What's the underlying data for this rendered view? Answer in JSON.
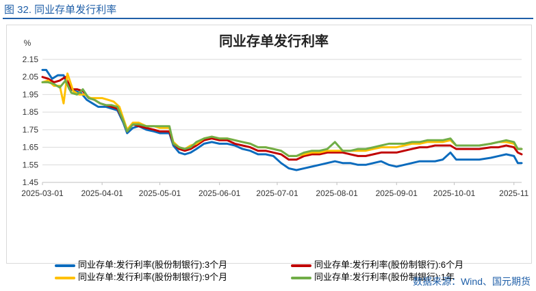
{
  "caption": "图 32. 同业存单发行利率",
  "source": "数据来源：Wind、国元期货",
  "chart_data": {
    "type": "line",
    "title": "同业存单发行利率",
    "ylabel": "%",
    "ylim": [
      1.45,
      2.15
    ],
    "yticks": [
      "2.15",
      "2.05",
      "1.95",
      "1.85",
      "1.75",
      "1.65",
      "1.55",
      "1.45"
    ],
    "xlim": [
      "2025-03-01",
      "2025-11-05"
    ],
    "xticks": [
      "2025-03-01",
      "2025-04-01",
      "2025-05-01",
      "2025-06-01",
      "2025-07-01",
      "2025-08-01",
      "2025-09-01",
      "2025-10-01",
      "2025-11"
    ],
    "grid": "horizontal",
    "legend_position": "bottom",
    "series": [
      {
        "name": "同业存单:发行利率(股份制银行):3个月",
        "color": "#0b6bbd",
        "points": [
          [
            "2025-03-01",
            2.09
          ],
          [
            "2025-03-03",
            2.09
          ],
          [
            "2025-03-06",
            2.04
          ],
          [
            "2025-03-09",
            2.06
          ],
          [
            "2025-03-12",
            2.06
          ],
          [
            "2025-03-15",
            1.98
          ],
          [
            "2025-03-18",
            1.97
          ],
          [
            "2025-03-21",
            1.96
          ],
          [
            "2025-03-24",
            1.92
          ],
          [
            "2025-03-27",
            1.9
          ],
          [
            "2025-03-30",
            1.88
          ],
          [
            "2025-04-03",
            1.88
          ],
          [
            "2025-04-06",
            1.87
          ],
          [
            "2025-04-09",
            1.86
          ],
          [
            "2025-04-12",
            1.79
          ],
          [
            "2025-04-14",
            1.73
          ],
          [
            "2025-04-17",
            1.76
          ],
          [
            "2025-04-20",
            1.77
          ],
          [
            "2025-04-24",
            1.75
          ],
          [
            "2025-04-28",
            1.74
          ],
          [
            "2025-05-01",
            1.73
          ],
          [
            "2025-05-06",
            1.73
          ],
          [
            "2025-05-08",
            1.66
          ],
          [
            "2025-05-11",
            1.62
          ],
          [
            "2025-05-14",
            1.61
          ],
          [
            "2025-05-17",
            1.62
          ],
          [
            "2025-05-20",
            1.64
          ],
          [
            "2025-05-24",
            1.67
          ],
          [
            "2025-05-28",
            1.68
          ],
          [
            "2025-06-01",
            1.67
          ],
          [
            "2025-06-05",
            1.67
          ],
          [
            "2025-06-09",
            1.66
          ],
          [
            "2025-06-13",
            1.64
          ],
          [
            "2025-06-17",
            1.63
          ],
          [
            "2025-06-21",
            1.61
          ],
          [
            "2025-06-25",
            1.61
          ],
          [
            "2025-06-29",
            1.6
          ],
          [
            "2025-07-03",
            1.56
          ],
          [
            "2025-07-07",
            1.53
          ],
          [
            "2025-07-11",
            1.52
          ],
          [
            "2025-07-15",
            1.53
          ],
          [
            "2025-07-19",
            1.54
          ],
          [
            "2025-07-23",
            1.55
          ],
          [
            "2025-07-27",
            1.56
          ],
          [
            "2025-07-31",
            1.57
          ],
          [
            "2025-08-04",
            1.56
          ],
          [
            "2025-08-08",
            1.56
          ],
          [
            "2025-08-12",
            1.55
          ],
          [
            "2025-08-16",
            1.55
          ],
          [
            "2025-08-20",
            1.56
          ],
          [
            "2025-08-24",
            1.57
          ],
          [
            "2025-08-28",
            1.55
          ],
          [
            "2025-09-01",
            1.54
          ],
          [
            "2025-09-05",
            1.55
          ],
          [
            "2025-09-09",
            1.56
          ],
          [
            "2025-09-13",
            1.57
          ],
          [
            "2025-09-17",
            1.57
          ],
          [
            "2025-09-21",
            1.57
          ],
          [
            "2025-09-25",
            1.58
          ],
          [
            "2025-09-29",
            1.62
          ],
          [
            "2025-10-02",
            1.58
          ],
          [
            "2025-10-08",
            1.58
          ],
          [
            "2025-10-14",
            1.58
          ],
          [
            "2025-10-20",
            1.59
          ],
          [
            "2025-10-24",
            1.6
          ],
          [
            "2025-10-28",
            1.61
          ],
          [
            "2025-11-01",
            1.6
          ],
          [
            "2025-11-03",
            1.56
          ],
          [
            "2025-11-05",
            1.56
          ]
        ]
      },
      {
        "name": "同业存单:发行利率(股份制银行):6个月",
        "color": "#c00000",
        "points": [
          [
            "2025-03-01",
            2.05
          ],
          [
            "2025-03-04",
            2.04
          ],
          [
            "2025-03-07",
            2.02
          ],
          [
            "2025-03-10",
            2.03
          ],
          [
            "2025-03-13",
            2.05
          ],
          [
            "2025-03-16",
            1.98
          ],
          [
            "2025-03-19",
            1.98
          ],
          [
            "2025-03-22",
            1.97
          ],
          [
            "2025-03-25",
            1.93
          ],
          [
            "2025-03-28",
            1.92
          ],
          [
            "2025-03-31",
            1.9
          ],
          [
            "2025-04-03",
            1.89
          ],
          [
            "2025-04-06",
            1.88
          ],
          [
            "2025-04-09",
            1.87
          ],
          [
            "2025-04-12",
            1.8
          ],
          [
            "2025-04-14",
            1.74
          ],
          [
            "2025-04-17",
            1.78
          ],
          [
            "2025-04-20",
            1.77
          ],
          [
            "2025-04-24",
            1.76
          ],
          [
            "2025-04-28",
            1.75
          ],
          [
            "2025-05-01",
            1.74
          ],
          [
            "2025-05-06",
            1.74
          ],
          [
            "2025-05-08",
            1.67
          ],
          [
            "2025-05-11",
            1.64
          ],
          [
            "2025-05-14",
            1.63
          ],
          [
            "2025-05-17",
            1.64
          ],
          [
            "2025-05-20",
            1.66
          ],
          [
            "2025-05-24",
            1.69
          ],
          [
            "2025-05-28",
            1.7
          ],
          [
            "2025-06-01",
            1.69
          ],
          [
            "2025-06-05",
            1.69
          ],
          [
            "2025-06-09",
            1.67
          ],
          [
            "2025-06-13",
            1.66
          ],
          [
            "2025-06-17",
            1.65
          ],
          [
            "2025-06-21",
            1.63
          ],
          [
            "2025-06-25",
            1.63
          ],
          [
            "2025-06-29",
            1.62
          ],
          [
            "2025-07-03",
            1.61
          ],
          [
            "2025-07-07",
            1.58
          ],
          [
            "2025-07-11",
            1.58
          ],
          [
            "2025-07-15",
            1.6
          ],
          [
            "2025-07-19",
            1.61
          ],
          [
            "2025-07-23",
            1.61
          ],
          [
            "2025-07-27",
            1.62
          ],
          [
            "2025-07-31",
            1.62
          ],
          [
            "2025-08-04",
            1.62
          ],
          [
            "2025-08-08",
            1.61
          ],
          [
            "2025-08-12",
            1.6
          ],
          [
            "2025-08-16",
            1.6
          ],
          [
            "2025-08-20",
            1.61
          ],
          [
            "2025-08-24",
            1.62
          ],
          [
            "2025-08-28",
            1.62
          ],
          [
            "2025-09-01",
            1.62
          ],
          [
            "2025-09-05",
            1.63
          ],
          [
            "2025-09-09",
            1.64
          ],
          [
            "2025-09-13",
            1.65
          ],
          [
            "2025-09-17",
            1.65
          ],
          [
            "2025-09-21",
            1.66
          ],
          [
            "2025-09-25",
            1.66
          ],
          [
            "2025-09-29",
            1.66
          ],
          [
            "2025-10-02",
            1.64
          ],
          [
            "2025-10-08",
            1.64
          ],
          [
            "2025-10-14",
            1.64
          ],
          [
            "2025-10-20",
            1.65
          ],
          [
            "2025-10-24",
            1.65
          ],
          [
            "2025-10-28",
            1.66
          ],
          [
            "2025-11-01",
            1.65
          ],
          [
            "2025-11-03",
            1.62
          ],
          [
            "2025-11-05",
            1.61
          ]
        ]
      },
      {
        "name": "同业存单:发行利率(股份制银行):9个月",
        "color": "#ffc000",
        "points": [
          [
            "2025-03-01",
            2.02
          ],
          [
            "2025-03-04",
            2.03
          ],
          [
            "2025-03-07",
            2.0
          ],
          [
            "2025-03-10",
            2.0
          ],
          [
            "2025-03-12",
            1.9
          ],
          [
            "2025-03-14",
            2.07
          ],
          [
            "2025-03-17",
            1.97
          ],
          [
            "2025-03-20",
            1.95
          ],
          [
            "2025-03-23",
            1.95
          ],
          [
            "2025-03-26",
            1.93
          ],
          [
            "2025-03-29",
            1.93
          ],
          [
            "2025-04-01",
            1.93
          ],
          [
            "2025-04-04",
            1.92
          ],
          [
            "2025-04-07",
            1.91
          ],
          [
            "2025-04-10",
            1.88
          ],
          [
            "2025-04-14",
            1.75
          ],
          [
            "2025-04-17",
            1.79
          ],
          [
            "2025-04-20",
            1.79
          ],
          [
            "2025-04-24",
            1.77
          ],
          [
            "2025-04-28",
            1.77
          ],
          [
            "2025-05-01",
            1.76
          ],
          [
            "2025-05-06",
            1.76
          ],
          [
            "2025-05-08",
            1.68
          ],
          [
            "2025-05-11",
            1.65
          ],
          [
            "2025-05-14",
            1.64
          ],
          [
            "2025-05-17",
            1.66
          ],
          [
            "2025-05-20",
            1.67
          ],
          [
            "2025-05-24",
            1.7
          ],
          [
            "2025-05-28",
            1.71
          ],
          [
            "2025-06-01",
            1.7
          ],
          [
            "2025-06-05",
            1.7
          ],
          [
            "2025-06-09",
            1.69
          ],
          [
            "2025-06-13",
            1.68
          ],
          [
            "2025-06-17",
            1.67
          ],
          [
            "2025-06-21",
            1.65
          ],
          [
            "2025-06-25",
            1.65
          ],
          [
            "2025-06-29",
            1.64
          ],
          [
            "2025-07-03",
            1.63
          ],
          [
            "2025-07-07",
            1.6
          ],
          [
            "2025-07-11",
            1.6
          ],
          [
            "2025-07-15",
            1.61
          ],
          [
            "2025-07-19",
            1.62
          ],
          [
            "2025-07-23",
            1.62
          ],
          [
            "2025-07-27",
            1.63
          ],
          [
            "2025-07-31",
            1.63
          ],
          [
            "2025-08-04",
            1.63
          ],
          [
            "2025-08-08",
            1.63
          ],
          [
            "2025-08-12",
            1.63
          ],
          [
            "2025-08-16",
            1.63
          ],
          [
            "2025-08-20",
            1.64
          ],
          [
            "2025-08-24",
            1.65
          ],
          [
            "2025-08-28",
            1.65
          ],
          [
            "2025-09-01",
            1.65
          ],
          [
            "2025-09-05",
            1.66
          ],
          [
            "2025-09-09",
            1.67
          ],
          [
            "2025-09-13",
            1.67
          ],
          [
            "2025-09-17",
            1.68
          ],
          [
            "2025-09-21",
            1.68
          ],
          [
            "2025-09-25",
            1.68
          ],
          [
            "2025-09-29",
            1.69
          ],
          [
            "2025-10-02",
            1.66
          ],
          [
            "2025-10-08",
            1.66
          ],
          [
            "2025-10-14",
            1.66
          ],
          [
            "2025-10-20",
            1.67
          ],
          [
            "2025-10-24",
            1.68
          ],
          [
            "2025-10-28",
            1.68
          ],
          [
            "2025-11-01",
            1.67
          ],
          [
            "2025-11-03",
            1.64
          ],
          [
            "2025-11-05",
            1.64
          ]
        ]
      },
      {
        "name": "同业存单:发行利率(股份制银行):1年",
        "color": "#70ad47",
        "points": [
          [
            "2025-03-01",
            2.02
          ],
          [
            "2025-03-04",
            2.02
          ],
          [
            "2025-03-07",
            2.01
          ],
          [
            "2025-03-10",
            1.99
          ],
          [
            "2025-03-13",
            2.03
          ],
          [
            "2025-03-16",
            1.96
          ],
          [
            "2025-03-19",
            1.95
          ],
          [
            "2025-03-22",
            1.98
          ],
          [
            "2025-03-25",
            1.93
          ],
          [
            "2025-03-28",
            1.92
          ],
          [
            "2025-03-31",
            1.9
          ],
          [
            "2025-04-03",
            1.89
          ],
          [
            "2025-04-06",
            1.89
          ],
          [
            "2025-04-09",
            1.88
          ],
          [
            "2025-04-12",
            1.8
          ],
          [
            "2025-04-14",
            1.74
          ],
          [
            "2025-04-17",
            1.78
          ],
          [
            "2025-04-20",
            1.78
          ],
          [
            "2025-04-24",
            1.77
          ],
          [
            "2025-04-28",
            1.77
          ],
          [
            "2025-05-01",
            1.77
          ],
          [
            "2025-05-06",
            1.77
          ],
          [
            "2025-05-08",
            1.67
          ],
          [
            "2025-05-11",
            1.65
          ],
          [
            "2025-05-14",
            1.64
          ],
          [
            "2025-05-17",
            1.65
          ],
          [
            "2025-05-20",
            1.68
          ],
          [
            "2025-05-24",
            1.7
          ],
          [
            "2025-05-28",
            1.71
          ],
          [
            "2025-06-01",
            1.7
          ],
          [
            "2025-06-05",
            1.7
          ],
          [
            "2025-06-09",
            1.69
          ],
          [
            "2025-06-13",
            1.68
          ],
          [
            "2025-06-17",
            1.67
          ],
          [
            "2025-06-21",
            1.65
          ],
          [
            "2025-06-25",
            1.65
          ],
          [
            "2025-06-29",
            1.64
          ],
          [
            "2025-07-03",
            1.63
          ],
          [
            "2025-07-07",
            1.6
          ],
          [
            "2025-07-11",
            1.6
          ],
          [
            "2025-07-15",
            1.62
          ],
          [
            "2025-07-19",
            1.63
          ],
          [
            "2025-07-23",
            1.63
          ],
          [
            "2025-07-27",
            1.64
          ],
          [
            "2025-07-31",
            1.68
          ],
          [
            "2025-08-04",
            1.63
          ],
          [
            "2025-08-08",
            1.63
          ],
          [
            "2025-08-12",
            1.64
          ],
          [
            "2025-08-16",
            1.64
          ],
          [
            "2025-08-20",
            1.65
          ],
          [
            "2025-08-24",
            1.66
          ],
          [
            "2025-08-28",
            1.67
          ],
          [
            "2025-09-01",
            1.67
          ],
          [
            "2025-09-05",
            1.67
          ],
          [
            "2025-09-09",
            1.68
          ],
          [
            "2025-09-13",
            1.68
          ],
          [
            "2025-09-17",
            1.69
          ],
          [
            "2025-09-21",
            1.69
          ],
          [
            "2025-09-25",
            1.69
          ],
          [
            "2025-09-29",
            1.7
          ],
          [
            "2025-10-02",
            1.66
          ],
          [
            "2025-10-08",
            1.66
          ],
          [
            "2025-10-14",
            1.66
          ],
          [
            "2025-10-20",
            1.67
          ],
          [
            "2025-10-24",
            1.68
          ],
          [
            "2025-10-28",
            1.69
          ],
          [
            "2025-11-01",
            1.68
          ],
          [
            "2025-11-03",
            1.64
          ],
          [
            "2025-11-05",
            1.64
          ]
        ]
      }
    ]
  }
}
